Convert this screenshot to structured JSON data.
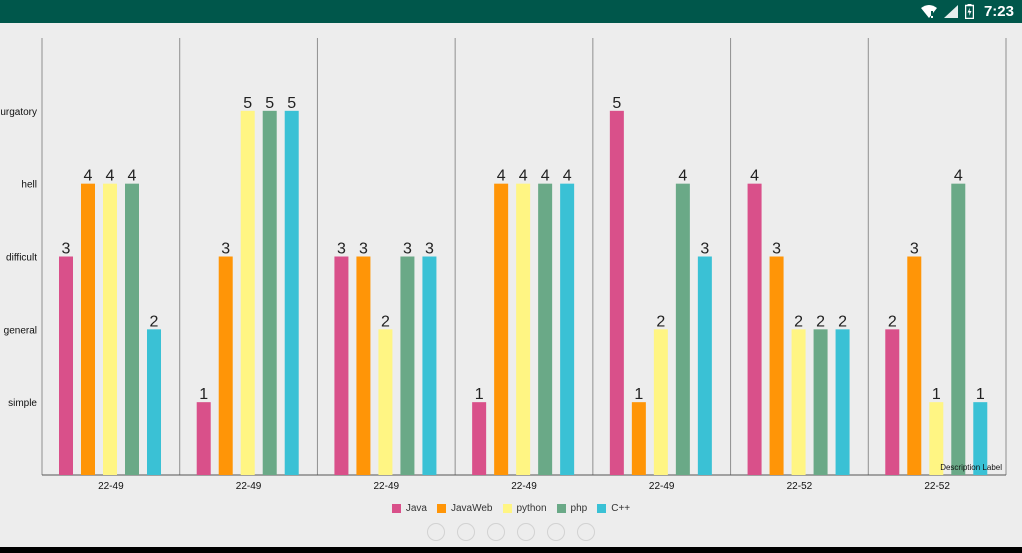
{
  "status_bar": {
    "time": "7:23",
    "icons": [
      "wifi-icon",
      "signal-icon",
      "battery-charging-icon"
    ],
    "color": "#00574b"
  },
  "chart_data": {
    "type": "bar",
    "categories": [
      "22-49",
      "22-49",
      "22-49",
      "22-49",
      "22-49",
      "22-52",
      "22-52"
    ],
    "y_levels": [
      "simple",
      "general",
      "difficult",
      "hell",
      "urgatory"
    ],
    "ylim": [
      0,
      6
    ],
    "grid": "vertical",
    "legend_position": "bottom-center",
    "description": "Description Label",
    "series": [
      {
        "name": "Java",
        "color": "#d9508a",
        "values": [
          3,
          1,
          3,
          1,
          5,
          4,
          2
        ]
      },
      {
        "name": "JavaWeb",
        "color": "#ff9507",
        "values": [
          4,
          3,
          3,
          4,
          1,
          3,
          3
        ]
      },
      {
        "name": "python",
        "color": "#fff583",
        "values": [
          4,
          5,
          2,
          4,
          2,
          2,
          1
        ]
      },
      {
        "name": "php",
        "color": "#6aa987",
        "values": [
          4,
          5,
          3,
          4,
          4,
          2,
          4
        ]
      },
      {
        "name": "C++",
        "color": "#3ac1d5",
        "values": [
          2,
          5,
          3,
          4,
          3,
          2,
          1
        ]
      }
    ]
  }
}
